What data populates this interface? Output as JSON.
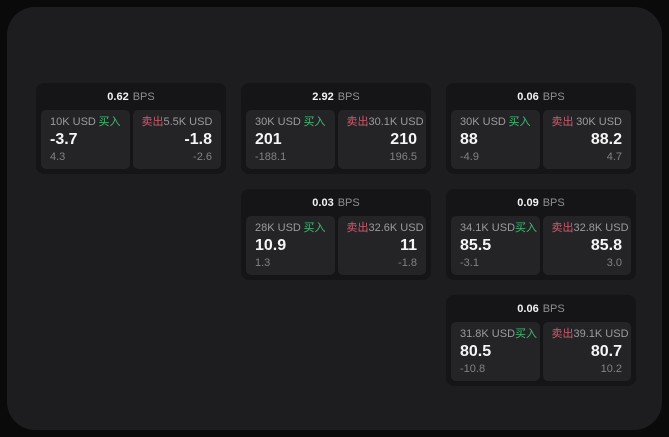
{
  "labels": {
    "bps_unit": "BPS",
    "buy": "买入",
    "sell": "卖出"
  },
  "colors": {
    "page_bg": "#0a0a0a",
    "window_bg": "#1d1d1f",
    "card_bg": "#151517",
    "panel_bg": "#242427",
    "text_primary": "#f5f5f6",
    "text_secondary": "#9b9b9e",
    "text_muted": "#828286",
    "buy_green": "#3dbd73",
    "sell_red": "#cf5a6d"
  },
  "cards": [
    {
      "bps": "0.62",
      "buy": {
        "amount": "10K USD",
        "price": "-3.7",
        "delta": "4.3"
      },
      "sell": {
        "amount": "5.5K USD",
        "price": "-1.8",
        "delta": "-2.6"
      }
    },
    {
      "bps": "2.92",
      "buy": {
        "amount": "30K USD",
        "price": "201",
        "delta": "-188.1"
      },
      "sell": {
        "amount": "30.1K USD",
        "price": "210",
        "delta": "196.5"
      }
    },
    {
      "bps": "0.06",
      "buy": {
        "amount": "30K USD",
        "price": "88",
        "delta": "-4.9"
      },
      "sell": {
        "amount": "30K USD",
        "price": "88.2",
        "delta": "4.7"
      }
    },
    {
      "bps": "0.03",
      "buy": {
        "amount": "28K USD",
        "price": "10.9",
        "delta": "1.3"
      },
      "sell": {
        "amount": "32.6K USD",
        "price": "11",
        "delta": "-1.8"
      }
    },
    {
      "bps": "0.09",
      "buy": {
        "amount": "34.1K USD",
        "price": "85.5",
        "delta": "-3.1"
      },
      "sell": {
        "amount": "32.8K USD",
        "price": "85.8",
        "delta": "3.0"
      }
    },
    {
      "bps": "0.06",
      "buy": {
        "amount": "31.8K USD",
        "price": "80.5",
        "delta": "-10.8"
      },
      "sell": {
        "amount": "39.1K USD",
        "price": "80.7",
        "delta": "10.2"
      }
    }
  ]
}
